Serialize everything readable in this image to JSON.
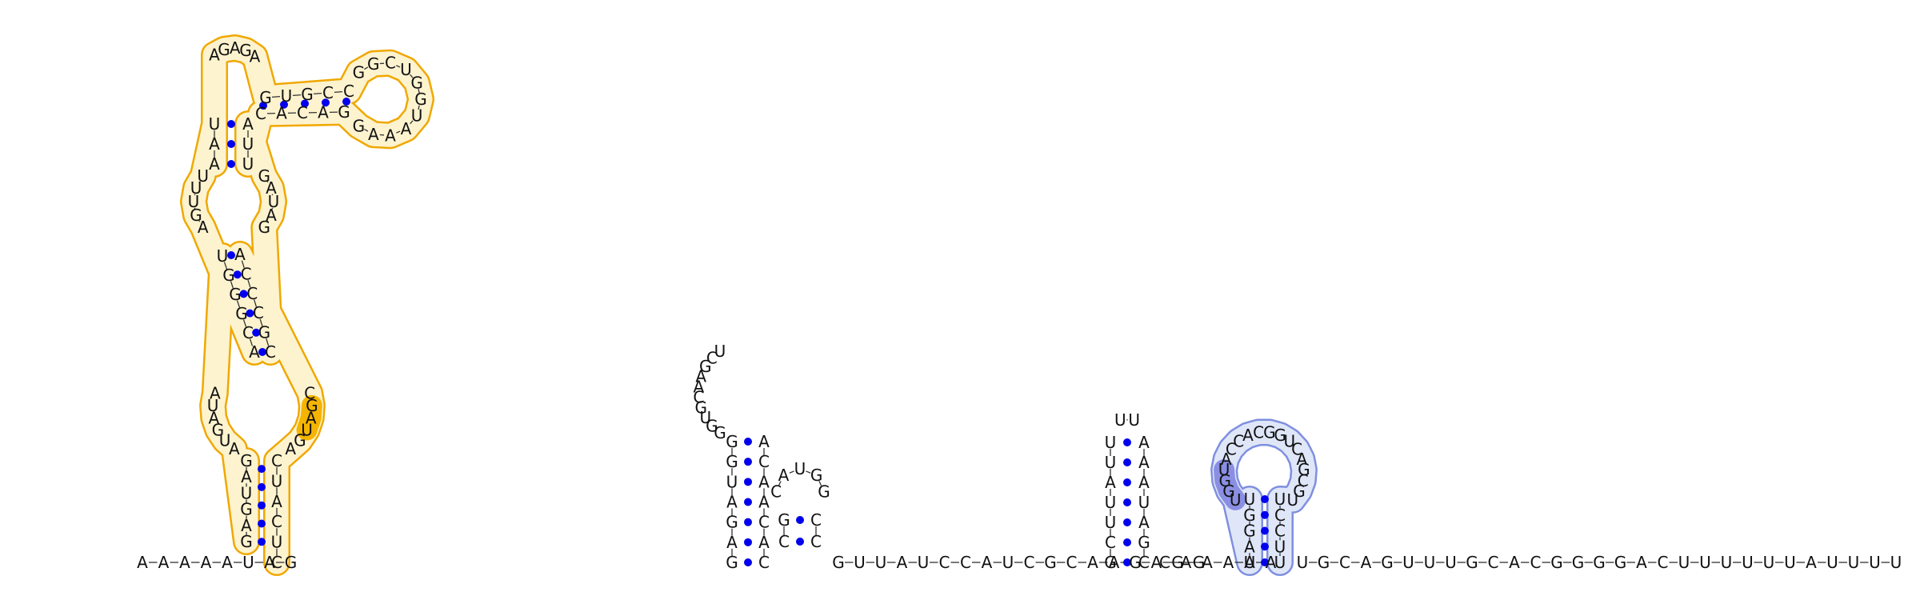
{
  "diagram": {
    "five_prime_tail": "AAAAAUAG",
    "domain1": {
      "stem_a_left": "GAGUAG",
      "stem_a_right": "CUCAUC",
      "loop_a_left": "AUGAUA",
      "loop_a_right": "CGAUGA",
      "stem_b_left": "UGGGCA",
      "stem_b_right": "ACCCGC",
      "loop_b_left": "AGUUU",
      "loop_b_right": "GAUAG",
      "stem_c_left": "UAA",
      "stem_c_right": "AUU",
      "loop_c_text": "AGAGA",
      "loop_c_left_side": "UAU",
      "arm_top": "GUGCC",
      "arm_bottom": "CACAG",
      "hairpin_loop": "GGCUGGUAAAG",
      "highlight": "UGA"
    },
    "dotted_linker_count": 36,
    "domain2": {
      "stem_left": "GAGAUGG",
      "stem_right": "CACAACA",
      "loop": "GGUGCAAGCU",
      "inner_left": "CG",
      "inner_right": "CC",
      "inner_loop": "CAUGG"
    },
    "linker2": "GUUAUCCAUCGCAAGAGG",
    "domain3": {
      "stem_left": "GCUUAUU",
      "stem_right": "CGAUAAA",
      "loop": "UU"
    },
    "linker3": "CAAAAA",
    "domain4": {
      "stem_left": "UAGGU",
      "stem_right": "UUCCU",
      "loop": "UGGUACCACGGUCAGCGU",
      "shaded": "UGGU"
    },
    "three_prime_tail": "UGCAGUUUGCACGGGGACUUUUUUAUUUU",
    "colors": {
      "base_pair_dot": "#0000ee",
      "domain_orange_outline": "#f0a800",
      "domain_orange_fill": "#fdf3cf",
      "highlight_orange": "#f5b400",
      "domain_blue_outline": "#7f8fe0",
      "domain_blue_fill": "#dfe6f8",
      "highlight_blue": "#8a8fe3"
    }
  }
}
